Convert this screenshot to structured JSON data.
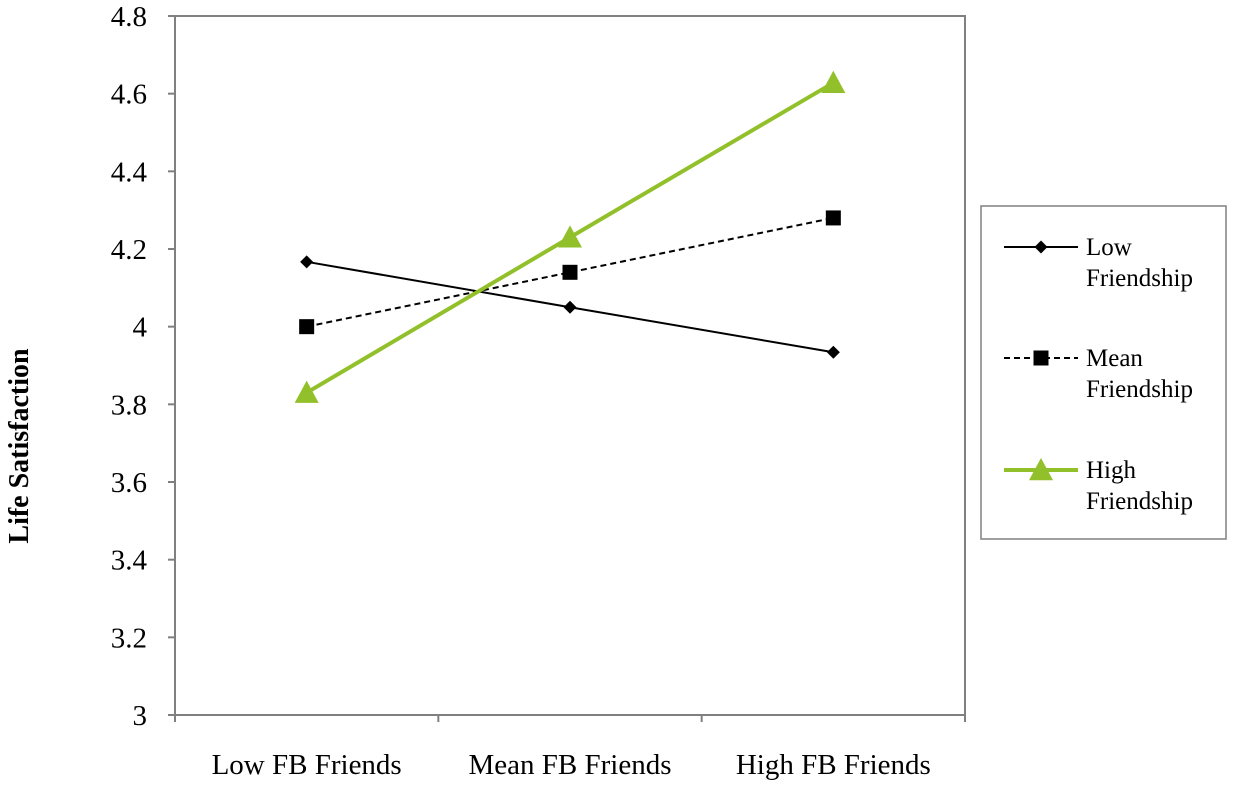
{
  "chart_data": {
    "type": "line",
    "title": "",
    "xlabel": "",
    "ylabel": "Life Satisfaction",
    "categories": [
      "Low FB Friends",
      "Mean FB Friends",
      "High FB Friends"
    ],
    "ylim": [
      3,
      4.8
    ],
    "yticks": [
      "3",
      "3.2",
      "3.4",
      "3.6",
      "3.8",
      "4",
      "4.2",
      "4.4",
      "4.6",
      "4.8"
    ],
    "grid": false,
    "legend_position": "right",
    "series": [
      {
        "name": "Low Friendship",
        "legend_lines": [
          "Low",
          "Friendship"
        ],
        "values": [
          4.167,
          4.05,
          3.934
        ],
        "color": "#000000",
        "marker": "diamond",
        "line_style": "solid"
      },
      {
        "name": "Mean Friendship",
        "legend_lines": [
          "Mean",
          "Friendship"
        ],
        "values": [
          4.0,
          4.14,
          4.28
        ],
        "color": "#000000",
        "marker": "square",
        "line_style": "dashed"
      },
      {
        "name": "High Friendship",
        "legend_lines": [
          "High",
          "Friendship"
        ],
        "values": [
          3.83,
          4.23,
          4.628
        ],
        "color": "#92c02a",
        "marker": "triangle",
        "line_style": "solid"
      }
    ]
  }
}
